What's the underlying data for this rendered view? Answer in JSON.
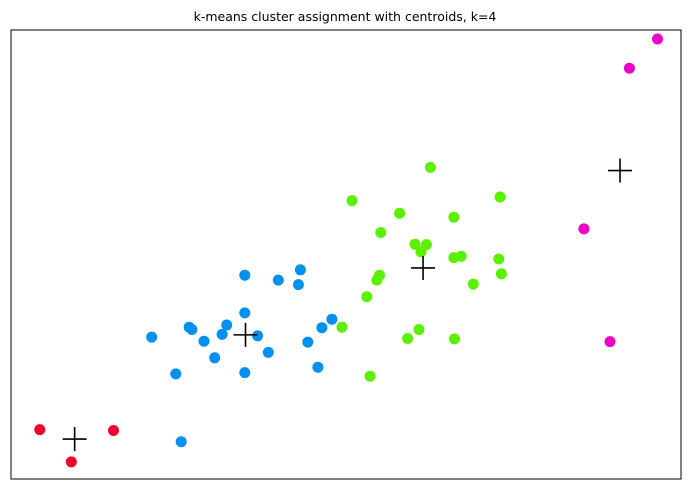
{
  "chart_data": {
    "type": "scatter",
    "title": "k-means cluster assignment with centroids, k=4",
    "xlabel": "",
    "ylabel": "",
    "xlim": [
      0,
      100
    ],
    "ylim": [
      0,
      100
    ],
    "grid": false,
    "show_ticks": false,
    "clusters": [
      {
        "color": "#f0002a",
        "points": [
          [
            4.3,
            11.0
          ],
          [
            15.3,
            10.8
          ],
          [
            9.0,
            3.8
          ]
        ]
      },
      {
        "color": "#0090f0",
        "points": [
          [
            21.0,
            31.6
          ],
          [
            26.6,
            33.8
          ],
          [
            27.0,
            33.3
          ],
          [
            28.8,
            30.7
          ],
          [
            31.5,
            32.2
          ],
          [
            32.2,
            34.3
          ],
          [
            30.4,
            27.0
          ],
          [
            24.6,
            23.4
          ],
          [
            25.4,
            8.3
          ],
          [
            34.9,
            45.4
          ],
          [
            39.9,
            44.3
          ],
          [
            43.2,
            46.6
          ],
          [
            42.9,
            43.3
          ],
          [
            34.9,
            37.0
          ],
          [
            36.8,
            31.9
          ],
          [
            38.4,
            28.2
          ],
          [
            34.9,
            23.7
          ],
          [
            44.3,
            30.5
          ],
          [
            46.4,
            33.7
          ],
          [
            47.9,
            35.6
          ],
          [
            45.8,
            24.9
          ]
        ]
      },
      {
        "color": "#5af000",
        "points": [
          [
            50.9,
            62.0
          ],
          [
            62.6,
            69.4
          ],
          [
            58.0,
            59.2
          ],
          [
            55.2,
            54.9
          ],
          [
            60.3,
            52.3
          ],
          [
            62.0,
            52.2
          ],
          [
            61.2,
            50.6
          ],
          [
            55.0,
            45.4
          ],
          [
            54.6,
            44.3
          ],
          [
            53.1,
            40.6
          ],
          [
            49.4,
            33.8
          ],
          [
            60.9,
            33.3
          ],
          [
            59.2,
            31.3
          ],
          [
            66.2,
            31.2
          ],
          [
            53.6,
            22.9
          ],
          [
            66.1,
            58.3
          ],
          [
            67.2,
            49.6
          ],
          [
            66.1,
            49.3
          ],
          [
            69.0,
            43.4
          ],
          [
            72.8,
            49.0
          ],
          [
            73.2,
            45.7
          ],
          [
            73.0,
            62.8
          ],
          [
            73.0,
            62.8
          ]
        ]
      },
      {
        "color": "#f000c8",
        "points": [
          [
            96.5,
            98.0
          ],
          [
            92.3,
            91.5
          ],
          [
            85.5,
            55.7
          ],
          [
            89.4,
            30.6
          ]
        ]
      }
    ],
    "centroids": [
      [
        9.5,
        8.9
      ],
      [
        35.0,
        32.1
      ],
      [
        61.5,
        47.0
      ],
      [
        90.9,
        68.7
      ]
    ]
  }
}
